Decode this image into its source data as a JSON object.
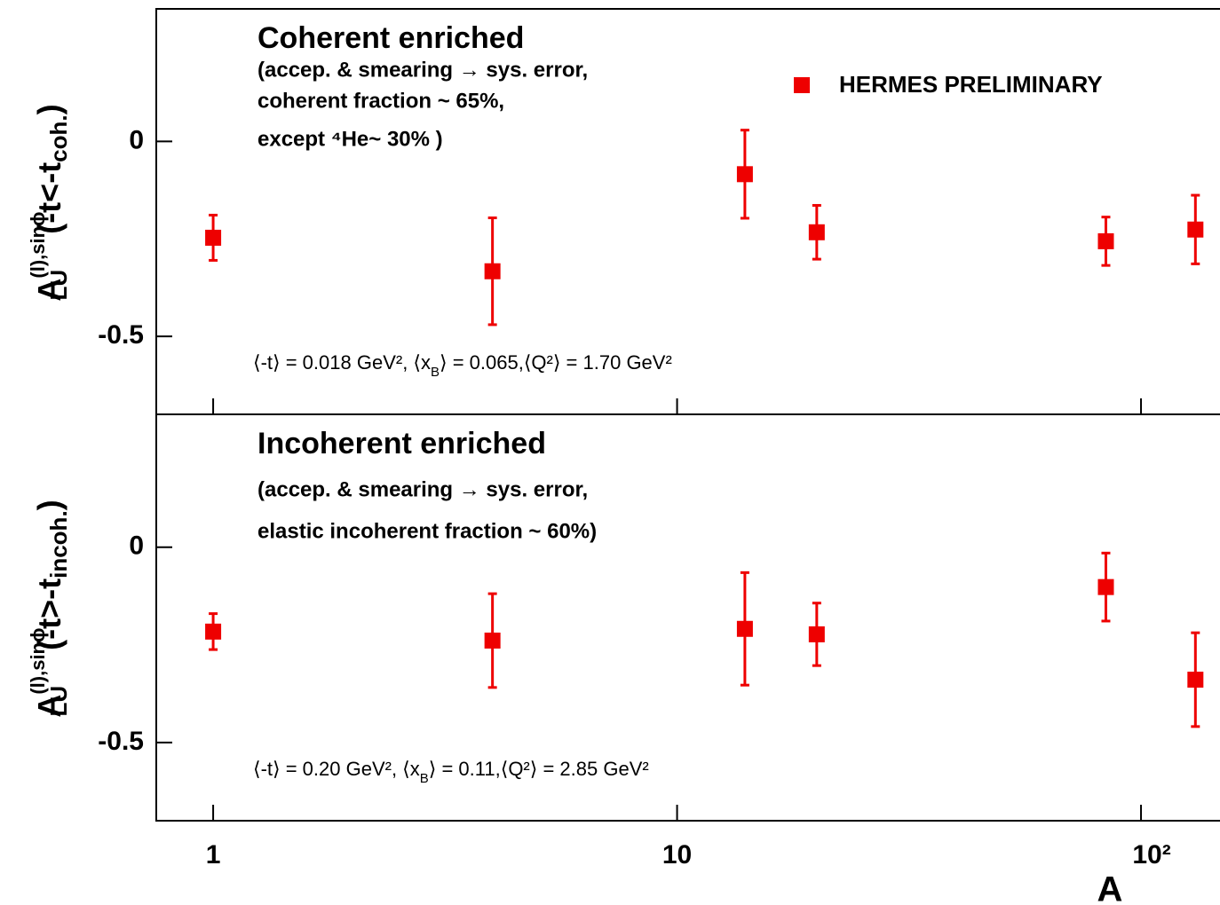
{
  "chart_data": [
    {
      "type": "scatter",
      "title": "Coherent enriched",
      "notes": [
        "(accep. & smearing → sys. error,",
        "coherent fraction ~ 65%,",
        "except ⁴He~ 30% )"
      ],
      "kinematics": [
        "⟨-t⟩ = 0.018 GeV², ⟨x",
        "B",
        "⟩ = 0.065,⟨Q²⟩ = 1.70 GeV²"
      ],
      "ylabel": {
        "main": "A",
        "sub": "LU",
        "sup": "(l),sinϕ",
        "cond": "(-t<-t",
        "cond_sub": "coh.",
        "close": ")"
      },
      "log_x": true,
      "xlim": [
        0.754,
        148
      ],
      "ylim": [
        -0.7,
        0.34
      ],
      "yticks": [
        -0.5,
        0
      ],
      "series": [
        {
          "name": "HERMES PRELIMINARY",
          "color": "#ee0000",
          "x": [
            1,
            4,
            14,
            20,
            84,
            131
          ],
          "values": [
            -0.247,
            -0.333,
            -0.084,
            -0.233,
            -0.256,
            -0.226
          ],
          "errors": [
            0.058,
            0.137,
            0.113,
            0.069,
            0.062,
            0.088
          ]
        }
      ],
      "legend": "upper right"
    },
    {
      "type": "scatter",
      "title": "Incoherent enriched",
      "notes": [
        "(accep. & smearing → sys. error,",
        "elastic incoherent fraction ~ 60%)"
      ],
      "kinematics": [
        "⟨-t⟩ = 0.20 GeV², ⟨x",
        "B",
        "⟩ = 0.11,⟨Q²⟩ = 2.85 GeV²"
      ],
      "ylabel": {
        "main": "A",
        "sub": "LU",
        "sup": "(l),sinϕ",
        "cond": "(-t>-t",
        "cond_sub": "incoh.",
        "close": ")"
      },
      "log_x": true,
      "xlabel": "A",
      "xlim": [
        0.754,
        148
      ],
      "ylim": [
        -0.7,
        0.34
      ],
      "yticks": [
        -0.5,
        0
      ],
      "xticks": [
        1,
        10,
        {
          "value": 100,
          "label": "10²"
        }
      ],
      "series": [
        {
          "color": "#ee0000",
          "x": [
            1,
            4,
            14,
            20,
            84,
            131
          ],
          "values": [
            -0.216,
            -0.239,
            -0.209,
            -0.223,
            -0.102,
            -0.339
          ],
          "errors": [
            0.046,
            0.12,
            0.144,
            0.08,
            0.087,
            0.12
          ]
        }
      ]
    }
  ]
}
